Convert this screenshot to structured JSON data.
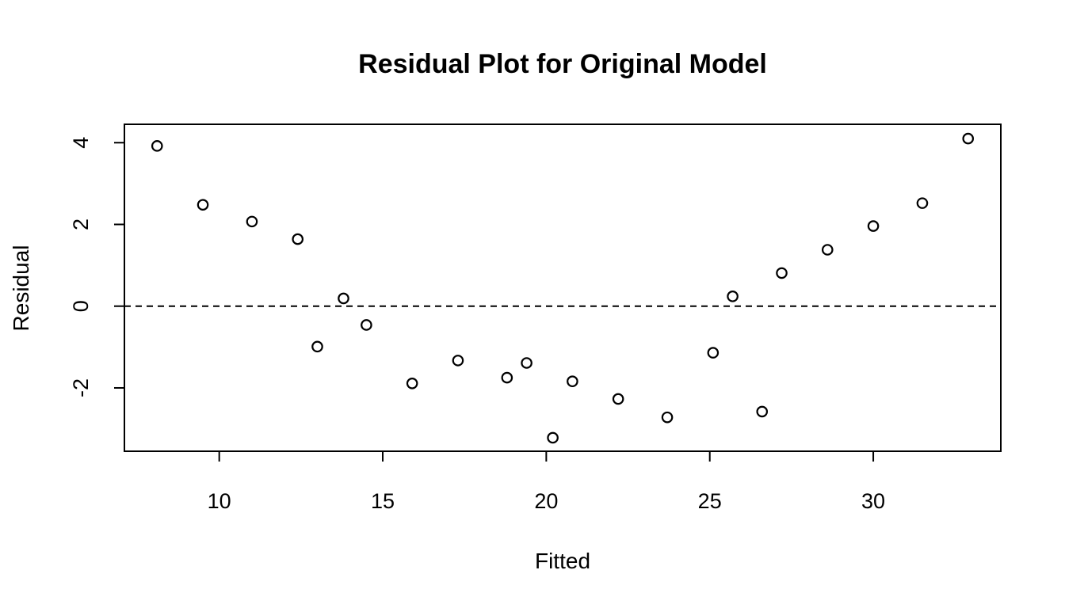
{
  "chart_data": {
    "type": "scatter",
    "title": "Residual Plot for Original Model",
    "xlabel": "Fitted",
    "ylabel": "Residual",
    "xlim": [
      7.1,
      33.9
    ],
    "ylim": [
      -3.55,
      4.45
    ],
    "xticks": [
      10,
      15,
      20,
      25,
      30
    ],
    "yticks": [
      -2,
      0,
      2,
      4
    ],
    "x_tick_labels": [
      "10",
      "15",
      "20",
      "25",
      "30"
    ],
    "y_tick_labels": [
      "-2",
      "0",
      "2",
      "4"
    ],
    "reference_line": {
      "y": 0,
      "style": "dashed"
    },
    "grid": false,
    "legend": "none",
    "series": [
      {
        "marker": "open-circle",
        "x": [
          8.1,
          9.5,
          11.0,
          12.4,
          13.0,
          13.8,
          14.5,
          15.9,
          17.3,
          18.8,
          19.4,
          20.2,
          20.8,
          22.2,
          23.7,
          25.1,
          25.7,
          26.6,
          27.2,
          28.6,
          30.0,
          31.5,
          32.9
        ],
        "y": [
          3.92,
          2.48,
          2.07,
          1.64,
          -0.99,
          0.19,
          -0.46,
          -1.89,
          -1.33,
          -1.75,
          -1.39,
          -3.22,
          -1.84,
          -2.27,
          -2.72,
          -1.14,
          0.24,
          -2.58,
          0.81,
          1.38,
          1.96,
          2.52,
          4.1
        ]
      }
    ]
  }
}
